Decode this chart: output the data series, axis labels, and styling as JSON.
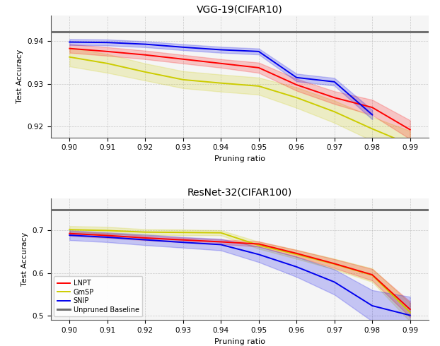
{
  "top_title": "VGG-19(CIFAR10)",
  "bottom_title": "ResNet-32(CIFAR100)",
  "xlabel": "Pruning ratio",
  "ylabel": "Test Accuracy",
  "x": [
    0.9,
    0.91,
    0.92,
    0.93,
    0.94,
    0.95,
    0.96,
    0.97,
    0.98,
    0.99
  ],
  "vgg_lnpt_mean": [
    0.9383,
    0.9376,
    0.9368,
    0.9358,
    0.9348,
    0.9338,
    0.9298,
    0.9268,
    0.9245,
    0.9193
  ],
  "vgg_lnpt_std": [
    0.001,
    0.001,
    0.001,
    0.001,
    0.001,
    0.0012,
    0.0014,
    0.0015,
    0.0018,
    0.0022
  ],
  "vgg_gnsp_mean": [
    0.9363,
    0.9348,
    0.9328,
    0.931,
    0.9302,
    0.9295,
    0.9268,
    0.9235,
    0.9195,
    0.9158
  ],
  "vgg_gnsp_std": [
    0.0022,
    0.0022,
    0.002,
    0.002,
    0.002,
    0.002,
    0.0024,
    0.0026,
    0.0028,
    0.0032
  ],
  "vgg_snip_mean": [
    0.9398,
    0.9397,
    0.9393,
    0.9386,
    0.938,
    0.9376,
    0.9315,
    0.9305,
    0.9228,
    null
  ],
  "vgg_snip_std": [
    0.0007,
    0.0007,
    0.0007,
    0.0007,
    0.0007,
    0.0007,
    0.0009,
    0.0009,
    0.0011,
    null
  ],
  "vgg_baseline": 0.9422,
  "res_lnpt_mean": [
    0.6925,
    0.6878,
    0.6822,
    0.6775,
    0.673,
    0.668,
    0.646,
    0.622,
    0.596,
    0.515
  ],
  "res_lnpt_std": [
    0.0055,
    0.0055,
    0.0055,
    0.0055,
    0.0055,
    0.006,
    0.008,
    0.0105,
    0.0135,
    0.018
  ],
  "res_gnsp_mean": [
    0.7015,
    0.6995,
    0.6958,
    0.695,
    0.6942,
    0.665,
    0.6438,
    0.621,
    0.595,
    0.508
  ],
  "res_gnsp_std": [
    0.0085,
    0.0085,
    0.0068,
    0.0068,
    0.006,
    0.0082,
    0.0105,
    0.0125,
    0.0158,
    0.0215
  ],
  "res_snip_mean": [
    0.6885,
    0.6838,
    0.6778,
    0.6718,
    0.6665,
    0.6435,
    0.6145,
    0.579,
    0.5235,
    0.501
  ],
  "res_snip_std": [
    0.0115,
    0.0115,
    0.0125,
    0.0125,
    0.0135,
    0.018,
    0.0235,
    0.0295,
    0.0365,
    0.0435
  ],
  "res_baseline": 0.748,
  "color_lnpt": "#FF0000",
  "color_gnsp": "#CCCC00",
  "color_snip": "#0000EE",
  "color_baseline": "#707070",
  "alpha_fill": 0.2,
  "linewidth": 1.4,
  "legend_labels": [
    "LNPT",
    "GmSP",
    "SNIP",
    "Unpruned Baseline"
  ],
  "vgg_yticks": [
    0.92,
    0.93,
    0.94
  ],
  "vgg_ylim": [
    0.9175,
    0.946
  ],
  "res_yticks": [
    0.5,
    0.6,
    0.7
  ],
  "res_ylim": [
    0.49,
    0.775
  ],
  "bg_color": "#f5f5f5",
  "grid_color": "#aaaaaa",
  "grid_alpha": 0.6
}
